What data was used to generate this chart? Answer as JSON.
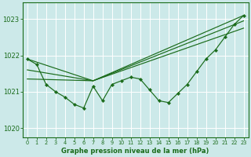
{
  "bg_color": "#cce9e9",
  "grid_color": "#ffffff",
  "line_color": "#1a6b1a",
  "xlabel": "Graphe pression niveau de la mer (hPa)",
  "xlim": [
    -0.5,
    23.5
  ],
  "ylim": [
    1019.75,
    1023.45
  ],
  "yticks": [
    1020,
    1021,
    1022,
    1023
  ],
  "xticks": [
    0,
    1,
    2,
    3,
    4,
    5,
    6,
    7,
    8,
    9,
    10,
    11,
    12,
    13,
    14,
    15,
    16,
    17,
    18,
    19,
    20,
    21,
    22,
    23
  ],
  "main_x": [
    0,
    1,
    2,
    3,
    4,
    5,
    6,
    7,
    8,
    9,
    10,
    11,
    12,
    13,
    14,
    15,
    16,
    17,
    18,
    19,
    20,
    21,
    22,
    23
  ],
  "main_y": [
    1021.9,
    1021.75,
    1021.2,
    1021.0,
    1020.85,
    1020.65,
    1020.55,
    1021.15,
    1020.75,
    1021.2,
    1021.3,
    1021.4,
    1021.35,
    1021.05,
    1020.75,
    1020.7,
    1020.95,
    1021.2,
    1021.55,
    1021.9,
    1022.15,
    1022.5,
    1022.85,
    1023.1
  ],
  "trend1_x": [
    0,
    7,
    23
  ],
  "trend1_y": [
    1021.9,
    1021.3,
    1023.1
  ],
  "trend2_x": [
    0,
    7,
    23
  ],
  "trend2_y": [
    1021.6,
    1021.3,
    1022.95
  ],
  "trend3_x": [
    0,
    7,
    23
  ],
  "trend3_y": [
    1021.35,
    1021.3,
    1022.75
  ]
}
